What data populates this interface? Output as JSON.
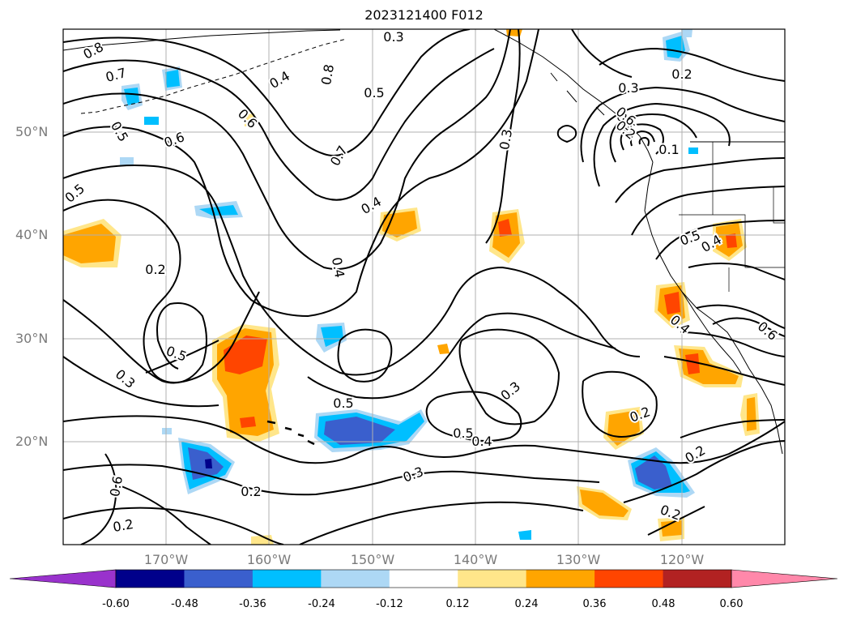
{
  "title": "2023121400 F012",
  "map": {
    "projection": "cylindrical",
    "lon_range": [
      -180,
      -110
    ],
    "lat_range": [
      10,
      60
    ],
    "gridlines": true,
    "lat_labels": [
      "20°N",
      "30°N",
      "40°N",
      "50°N"
    ],
    "lon_labels": [
      "170°W",
      "160°W",
      "150°W",
      "140°W",
      "130°W",
      "120°W"
    ],
    "contour_labels": [
      "0.8",
      "0.7",
      "0.6",
      "0.5",
      "0.5",
      "0.2",
      "0.2",
      "0.5",
      "0.6",
      "0.2",
      "0.5",
      "0.7",
      "0.8",
      "0.4",
      "0.4",
      "0.4",
      "0.3",
      "0.5",
      "0.3",
      "0.3",
      "0.4",
      "0.5",
      "0.4",
      "0.3",
      "0.2",
      "0.2",
      "0.2",
      "0.6",
      "0.5",
      "0.4",
      "0.6",
      "0.5",
      "0.1",
      "0.3",
      "0.2",
      "0.6",
      "0.2",
      "0.3"
    ]
  },
  "colorbar": {
    "colors": [
      "#9932cc",
      "#00008b",
      "#3a5fcd",
      "#00bfff",
      "#add8f5",
      "#ffffff",
      "#ffe68a",
      "#ffa500",
      "#ff4500",
      "#b22222",
      "#ff88aa"
    ],
    "ticks": [
      "-0.60",
      "-0.48",
      "-0.36",
      "-0.24",
      "-0.12",
      "0.12",
      "0.24",
      "0.36",
      "0.48",
      "0.60"
    ]
  }
}
